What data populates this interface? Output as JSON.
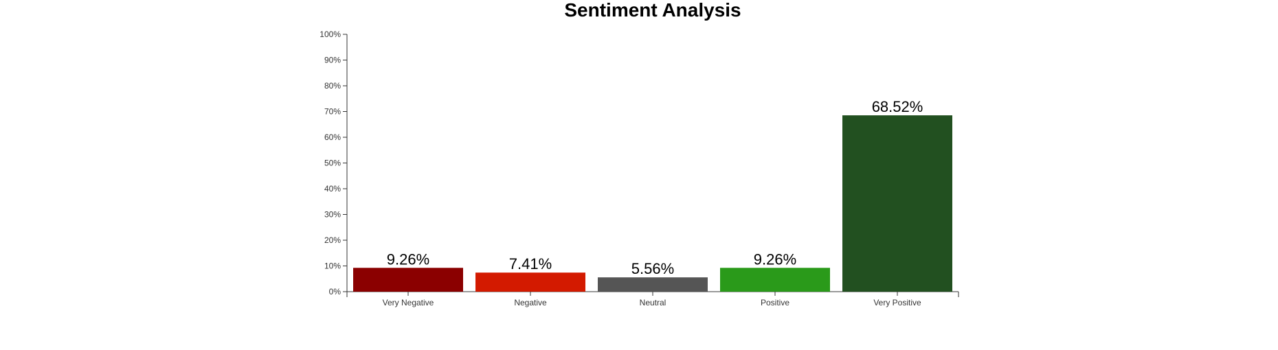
{
  "chart_data": {
    "type": "bar",
    "title": "Sentiment Analysis",
    "categories": [
      "Very Negative",
      "Negative",
      "Neutral",
      "Positive",
      "Very Positive"
    ],
    "values": [
      9.26,
      7.41,
      5.56,
      9.26,
      68.52
    ],
    "value_labels": [
      "9.26%",
      "7.41%",
      "5.56%",
      "9.26%",
      "68.52%"
    ],
    "colors": [
      "#8b0000",
      "#d31a00",
      "#555555",
      "#2a9a1a",
      "#225020"
    ],
    "ylim": [
      0,
      100
    ],
    "yticks": [
      0,
      10,
      20,
      30,
      40,
      50,
      60,
      70,
      80,
      90,
      100
    ],
    "ytick_labels": [
      "0%",
      "10%",
      "20%",
      "30%",
      "40%",
      "50%",
      "60%",
      "70%",
      "80%",
      "90%",
      "100%"
    ],
    "xlabel": "",
    "ylabel": "",
    "grid": false,
    "legend": "none"
  }
}
